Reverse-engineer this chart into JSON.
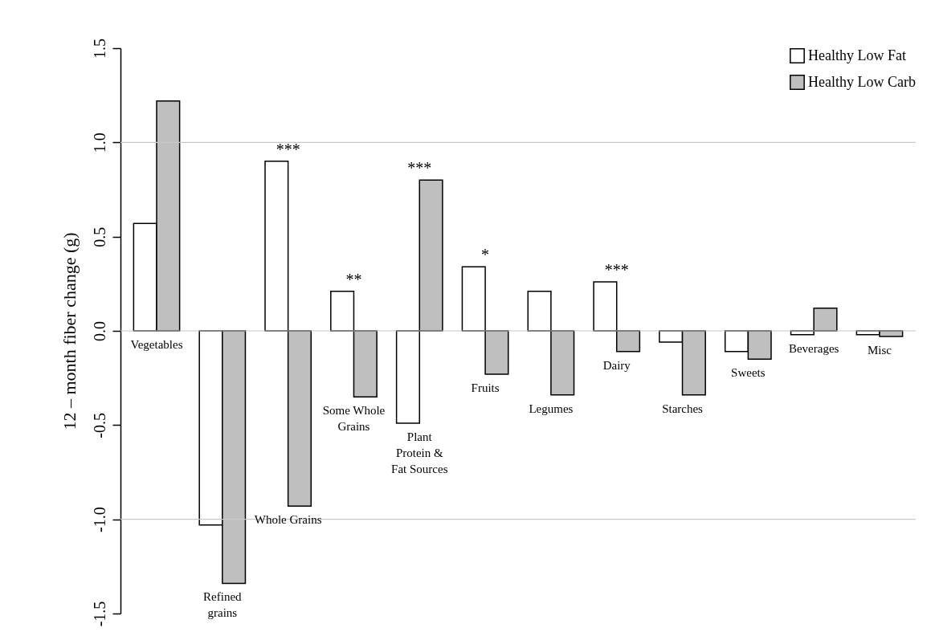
{
  "chart_data": {
    "type": "bar",
    "ylabel": "12 – month fiber change (g)",
    "categories": [
      "Vegetables",
      "Refined grains",
      "Whole Grains",
      "Some Whole Grains",
      "Plant Protein & Fat Sources",
      "Fruits",
      "Legumes",
      "Dairy",
      "Starches",
      "Sweets",
      "Beverages",
      "Misc"
    ],
    "series": [
      {
        "name": "Healthy Low Fat",
        "color": "#ffffff",
        "values": [
          0.57,
          -1.03,
          0.9,
          0.21,
          -0.49,
          0.34,
          0.21,
          0.26,
          -0.06,
          -0.11,
          -0.02,
          -0.02
        ]
      },
      {
        "name": "Healthy Low Carb",
        "color": "#bfbfbf",
        "values": [
          1.22,
          -1.34,
          -0.93,
          -0.35,
          0.8,
          -0.23,
          -0.34,
          -0.11,
          -0.34,
          -0.15,
          0.12,
          -0.03
        ]
      }
    ],
    "ylim": [
      -1.5,
      1.5
    ],
    "yticks": [
      {
        "value": -1.5,
        "label": "-1.5"
      },
      {
        "value": -1,
        "label": "-1.0"
      },
      {
        "value": -0.5,
        "label": "-0.5"
      },
      {
        "value": 0,
        "label": "0.0"
      },
      {
        "value": 0.5,
        "label": "0.5"
      },
      {
        "value": 1,
        "label": "1.0"
      },
      {
        "value": 1.5,
        "label": "1.5"
      }
    ],
    "ref_lines": [
      {
        "axis": "y",
        "value": 1,
        "color": "#c8c8c8"
      },
      {
        "axis": "y",
        "value": 0,
        "color": "#c8c8c8"
      },
      {
        "axis": "y",
        "value": -1,
        "color": "#c8c8c8"
      }
    ],
    "annotations": [
      {
        "text": "***",
        "x": "Whole Grains",
        "y": 0.9
      },
      {
        "text": "**",
        "x": "Some Whole Grains",
        "y": 0.21
      },
      {
        "text": "***",
        "x": "Plant Protein & Fat Sources",
        "y": 0.8
      },
      {
        "text": "*",
        "x": "Fruits",
        "y": 0.34
      },
      {
        "text": "***",
        "x": "Dairy",
        "y": 0.26
      }
    ],
    "legend": "top right"
  }
}
